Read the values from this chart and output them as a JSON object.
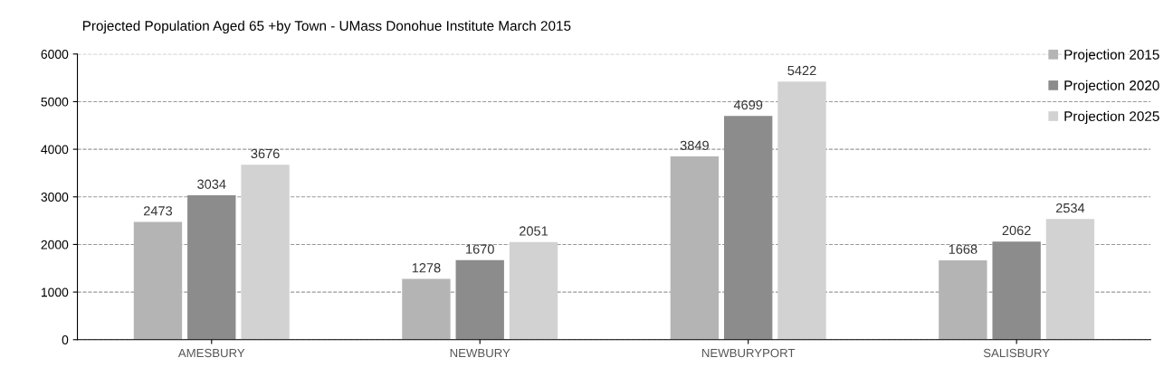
{
  "chart_data": {
    "type": "bar",
    "title": "Projected Population Aged 65 +by Town - UMass Donohue Institute March 2015",
    "categories": [
      "AMESBURY",
      "NEWBURY",
      "NEWBURYPORT",
      "SALISBURY"
    ],
    "series": [
      {
        "name": "Projection 2015",
        "color": "#b4b4b4",
        "values": [
          2473,
          1278,
          3849,
          1668
        ]
      },
      {
        "name": "Projection 2020",
        "color": "#8c8c8c",
        "values": [
          3034,
          1670,
          4699,
          2062
        ]
      },
      {
        "name": "Projection 2025",
        "color": "#d2d2d2",
        "values": [
          3676,
          2051,
          5422,
          2534
        ]
      }
    ],
    "ylim": [
      0,
      6000
    ],
    "yticks": [
      0,
      1000,
      2000,
      3000,
      4000,
      5000,
      6000
    ],
    "grid": "y",
    "legend": "top right",
    "data_labels": true
  }
}
